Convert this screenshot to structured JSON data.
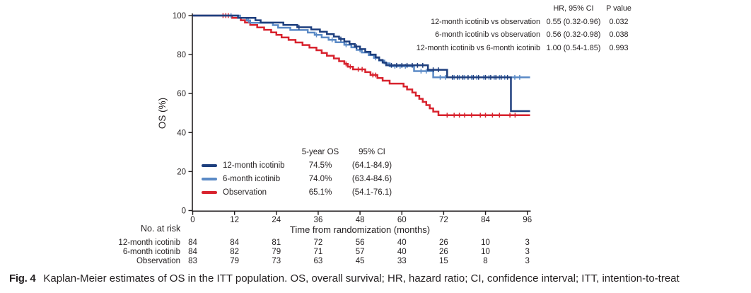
{
  "colors": {
    "dark_blue": "#1e3f7e",
    "light_blue": "#5b8ac6",
    "red": "#d8232e",
    "text": "#231f20"
  },
  "hr_table": {
    "col_headers": [
      "HR, 95% CI",
      "P value"
    ],
    "rows": [
      {
        "label": "12-month icotinib vs observation",
        "hr": "0.55 (0.32-0.96)",
        "p": "0.032"
      },
      {
        "label": "6-month icotinib vs observation",
        "hr": "0.56 (0.32-0.98)",
        "p": "0.038"
      },
      {
        "label": "12-month icotinib vs 6-month icotinib",
        "hr": "1.00 (0.54-1.85)",
        "p": "0.993"
      }
    ]
  },
  "legend_table": {
    "col_headers": [
      "5-year OS",
      "95% CI"
    ],
    "rows": [
      {
        "name": "12-month icotinib",
        "os": "74.5%",
        "ci": "(64.1-84.9)",
        "color": "#1e3f7e"
      },
      {
        "name": "6-month icotinib",
        "os": "74.0%",
        "ci": "(63.4-84.6)",
        "color": "#5b8ac6"
      },
      {
        "name": "Observation",
        "os": "65.1%",
        "ci": "(54.1-76.1)",
        "color": "#d8232e"
      }
    ]
  },
  "risk_table": {
    "title": "No. at risk",
    "rows": [
      {
        "label": "12-month icotinib",
        "counts": [
          84,
          84,
          81,
          72,
          56,
          40,
          26,
          10,
          3
        ]
      },
      {
        "label": "6-month icotinib",
        "counts": [
          84,
          82,
          79,
          71,
          57,
          40,
          26,
          10,
          3
        ]
      },
      {
        "label": "Observation",
        "counts": [
          83,
          79,
          73,
          63,
          45,
          33,
          15,
          8,
          3
        ]
      }
    ]
  },
  "caption": {
    "tag": "Fig. 4",
    "text": "Kaplan-Meier estimates of OS in the ITT population. OS, overall survival; HR, hazard ratio; CI, confidence interval; ITT, intention-to-treat"
  },
  "chart_data": {
    "type": "line",
    "subtype": "kaplan-meier-step",
    "title": "",
    "xlabel": "Time from randomization (months)",
    "ylabel": "OS (%)",
    "xlim": [
      0,
      96
    ],
    "ylim": [
      0,
      100
    ],
    "xticks": [
      0,
      12,
      24,
      36,
      48,
      60,
      72,
      84,
      96
    ],
    "yticks": [
      0,
      20,
      40,
      60,
      80,
      100
    ],
    "grid": false,
    "legend_position": "inside-lower-left",
    "series": [
      {
        "name": "12-month icotinib",
        "color": "#1e3f7e",
        "five_year_os": 74.5,
        "five_year_ci": "64.1-84.9",
        "steps": [
          [
            0,
            100
          ],
          [
            13,
            100
          ],
          [
            13,
            98.8
          ],
          [
            18,
            98.8
          ],
          [
            18,
            97.6
          ],
          [
            19.5,
            97.6
          ],
          [
            19.5,
            96.4
          ],
          [
            26,
            96.4
          ],
          [
            26,
            95.2
          ],
          [
            30,
            95.2
          ],
          [
            30,
            94
          ],
          [
            34,
            94
          ],
          [
            34,
            92.9
          ],
          [
            36.5,
            92.9
          ],
          [
            36.5,
            91.7
          ],
          [
            38.5,
            91.7
          ],
          [
            38.5,
            90.5
          ],
          [
            40.5,
            90.5
          ],
          [
            40.5,
            89.2
          ],
          [
            42,
            89.2
          ],
          [
            42,
            88
          ],
          [
            43.5,
            88
          ],
          [
            43.5,
            86.7
          ],
          [
            45,
            86.7
          ],
          [
            45,
            85.4
          ],
          [
            46.5,
            85.4
          ],
          [
            46.5,
            84.1
          ],
          [
            48,
            84.1
          ],
          [
            48,
            82.8
          ],
          [
            49.5,
            82.8
          ],
          [
            49.5,
            81.4
          ],
          [
            51,
            81.4
          ],
          [
            51,
            80
          ],
          [
            52.5,
            80
          ],
          [
            52.5,
            78.6
          ],
          [
            53.5,
            78.6
          ],
          [
            53.5,
            77.2
          ],
          [
            54.5,
            77.2
          ],
          [
            54.5,
            75.9
          ],
          [
            55.5,
            75.9
          ],
          [
            55.5,
            74.5
          ],
          [
            67.5,
            74.5
          ],
          [
            67.5,
            72.2
          ],
          [
            73,
            72.2
          ],
          [
            73,
            68.3
          ],
          [
            91.3,
            68.3
          ],
          [
            91.3,
            51
          ],
          [
            96.8,
            51
          ]
        ],
        "censors": [
          [
            30.5,
            94
          ],
          [
            42.5,
            88
          ],
          [
            47,
            84.1
          ],
          [
            57,
            74.5
          ],
          [
            58.5,
            74.5
          ],
          [
            60,
            74.5
          ],
          [
            61.5,
            74.5
          ],
          [
            63,
            74.5
          ],
          [
            64.5,
            74.5
          ],
          [
            66,
            74.5
          ],
          [
            69,
            72.2
          ],
          [
            70.5,
            72.2
          ],
          [
            74.5,
            68.3
          ],
          [
            76,
            68.3
          ],
          [
            77.5,
            68.3
          ],
          [
            79,
            68.3
          ],
          [
            80.5,
            68.3
          ],
          [
            82,
            68.3
          ],
          [
            84,
            68.3
          ],
          [
            85.5,
            68.3
          ],
          [
            87,
            68.3
          ],
          [
            88.5,
            68.3
          ],
          [
            90.3,
            68.3
          ]
        ]
      },
      {
        "name": "6-month icotinib",
        "color": "#5b8ac6",
        "five_year_os": 74.0,
        "five_year_ci": "63.4-84.6",
        "steps": [
          [
            0,
            100
          ],
          [
            13.6,
            100
          ],
          [
            13.6,
            98.8
          ],
          [
            15.5,
            98.8
          ],
          [
            15.5,
            97.5
          ],
          [
            16.5,
            97.5
          ],
          [
            16.5,
            96.3
          ],
          [
            23,
            96.3
          ],
          [
            23,
            95.1
          ],
          [
            24.5,
            95.1
          ],
          [
            24.5,
            93.8
          ],
          [
            28,
            93.8
          ],
          [
            28,
            92.6
          ],
          [
            33,
            92.6
          ],
          [
            33,
            91.3
          ],
          [
            35,
            91.3
          ],
          [
            35,
            90.1
          ],
          [
            37,
            90.1
          ],
          [
            37,
            88.8
          ],
          [
            39,
            88.8
          ],
          [
            39,
            87.6
          ],
          [
            41,
            87.6
          ],
          [
            41,
            86.3
          ],
          [
            43.5,
            86.3
          ],
          [
            43.5,
            85
          ],
          [
            45.5,
            85
          ],
          [
            45.5,
            83.7
          ],
          [
            47,
            83.7
          ],
          [
            47,
            82.4
          ],
          [
            48.5,
            82.4
          ],
          [
            48.5,
            81.1
          ],
          [
            50.5,
            81.1
          ],
          [
            50.5,
            79.7
          ],
          [
            52,
            79.7
          ],
          [
            52,
            78.3
          ],
          [
            53.5,
            78.3
          ],
          [
            53.5,
            76.9
          ],
          [
            55,
            76.9
          ],
          [
            55,
            75.5
          ],
          [
            56.5,
            75.5
          ],
          [
            56.5,
            74
          ],
          [
            63.5,
            74
          ],
          [
            63.5,
            71.5
          ],
          [
            69,
            71.5
          ],
          [
            69,
            68.3
          ],
          [
            96.8,
            68.3
          ]
        ],
        "censors": [
          [
            11,
            100
          ],
          [
            16,
            97.5
          ],
          [
            35.5,
            90.1
          ],
          [
            40,
            87.6
          ],
          [
            44,
            85
          ],
          [
            48,
            82.4
          ],
          [
            52.5,
            78.3
          ],
          [
            58,
            74
          ],
          [
            59.5,
            74
          ],
          [
            61,
            74
          ],
          [
            65.5,
            71.5
          ],
          [
            67,
            71.5
          ],
          [
            71,
            68.3
          ],
          [
            72.5,
            68.3
          ],
          [
            75,
            68.3
          ],
          [
            76.5,
            68.3
          ],
          [
            78,
            68.3
          ],
          [
            80,
            68.3
          ],
          [
            81.5,
            68.3
          ],
          [
            83.5,
            68.3
          ],
          [
            85,
            68.3
          ],
          [
            86.5,
            68.3
          ],
          [
            88,
            68.3
          ],
          [
            89.5,
            68.3
          ],
          [
            92.4,
            68.3
          ],
          [
            93.8,
            68.3
          ]
        ]
      },
      {
        "name": "Observation",
        "color": "#d8232e",
        "five_year_os": 65.1,
        "five_year_ci": "54.1-76.1",
        "steps": [
          [
            0,
            100
          ],
          [
            11.3,
            100
          ],
          [
            11.3,
            98.8
          ],
          [
            13.8,
            98.8
          ],
          [
            13.8,
            97.6
          ],
          [
            15,
            97.6
          ],
          [
            15,
            96.4
          ],
          [
            16.5,
            96.4
          ],
          [
            16.5,
            95.2
          ],
          [
            18.5,
            95.2
          ],
          [
            18.5,
            93.9
          ],
          [
            20.5,
            93.9
          ],
          [
            20.5,
            92.7
          ],
          [
            22.5,
            92.7
          ],
          [
            22.5,
            91.4
          ],
          [
            24,
            91.4
          ],
          [
            24,
            90.1
          ],
          [
            25.5,
            90.1
          ],
          [
            25.5,
            88.8
          ],
          [
            27.5,
            88.8
          ],
          [
            27.5,
            87.5
          ],
          [
            29.5,
            87.5
          ],
          [
            29.5,
            86.2
          ],
          [
            31.5,
            86.2
          ],
          [
            31.5,
            84.9
          ],
          [
            33.5,
            84.9
          ],
          [
            33.5,
            83.6
          ],
          [
            35.5,
            83.6
          ],
          [
            35.5,
            82.2
          ],
          [
            37,
            82.2
          ],
          [
            37,
            80.8
          ],
          [
            38.5,
            80.8
          ],
          [
            38.5,
            79.4
          ],
          [
            40.5,
            79.4
          ],
          [
            40.5,
            78
          ],
          [
            42,
            78
          ],
          [
            42,
            76.6
          ],
          [
            43.5,
            76.6
          ],
          [
            43.5,
            75.2
          ],
          [
            44.5,
            75.2
          ],
          [
            44.5,
            73.8
          ],
          [
            46,
            73.8
          ],
          [
            46,
            72.4
          ],
          [
            49.5,
            72.4
          ],
          [
            49.5,
            71
          ],
          [
            51,
            71
          ],
          [
            51,
            69.5
          ],
          [
            53,
            69.5
          ],
          [
            53,
            68
          ],
          [
            54.5,
            68
          ],
          [
            54.5,
            66.6
          ],
          [
            56.5,
            66.6
          ],
          [
            56.5,
            65.1
          ],
          [
            60.5,
            65.1
          ],
          [
            60.5,
            63.6
          ],
          [
            61.5,
            63.6
          ],
          [
            61.5,
            62.1
          ],
          [
            63,
            62.1
          ],
          [
            63,
            60.5
          ],
          [
            64,
            60.5
          ],
          [
            64,
            58.9
          ],
          [
            65,
            58.9
          ],
          [
            65,
            57.3
          ],
          [
            66,
            57.3
          ],
          [
            66,
            55.7
          ],
          [
            67,
            55.7
          ],
          [
            67,
            54.1
          ],
          [
            68,
            54.1
          ],
          [
            68,
            52.4
          ],
          [
            69,
            52.4
          ],
          [
            69,
            50.7
          ],
          [
            70.5,
            50.7
          ],
          [
            70.5,
            48.9
          ],
          [
            96.8,
            48.9
          ]
        ],
        "censors": [
          [
            8.7,
            100
          ],
          [
            9.5,
            100
          ],
          [
            10.2,
            100
          ],
          [
            44,
            75.2
          ],
          [
            45.2,
            73.8
          ],
          [
            47.5,
            72.4
          ],
          [
            48.6,
            72.4
          ],
          [
            51.7,
            69.5
          ],
          [
            52.5,
            69.5
          ],
          [
            73,
            48.9
          ],
          [
            75,
            48.9
          ],
          [
            76.5,
            48.9
          ],
          [
            78,
            48.9
          ],
          [
            80,
            48.9
          ],
          [
            82.5,
            48.9
          ],
          [
            84,
            48.9
          ],
          [
            86,
            48.9
          ],
          [
            88,
            48.9
          ],
          [
            91,
            48.9
          ],
          [
            92.5,
            48.9
          ]
        ]
      }
    ]
  }
}
